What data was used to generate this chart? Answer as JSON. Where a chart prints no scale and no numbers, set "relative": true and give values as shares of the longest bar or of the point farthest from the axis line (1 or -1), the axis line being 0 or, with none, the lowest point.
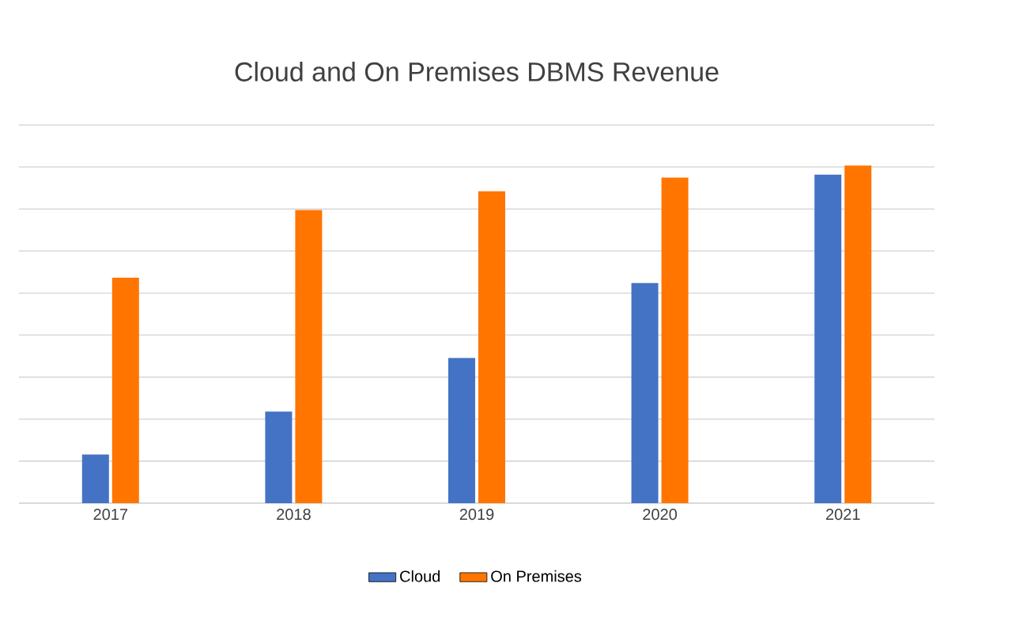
{
  "chart_data": {
    "type": "bar",
    "title": "Cloud and On Premises DBMS Revenue",
    "relative": true,
    "categories": [
      "2017",
      "2018",
      "2019",
      "2020",
      "2021"
    ],
    "series": [
      {
        "name": "Cloud",
        "color": "#4472c4",
        "values": [
          0.144,
          0.271,
          0.43,
          0.652,
          0.973
        ]
      },
      {
        "name": "On Premises",
        "color": "#ff7500",
        "values": [
          0.668,
          0.868,
          0.924,
          0.964,
          1
        ]
      }
    ],
    "grid": "y",
    "legend": "bottom"
  }
}
